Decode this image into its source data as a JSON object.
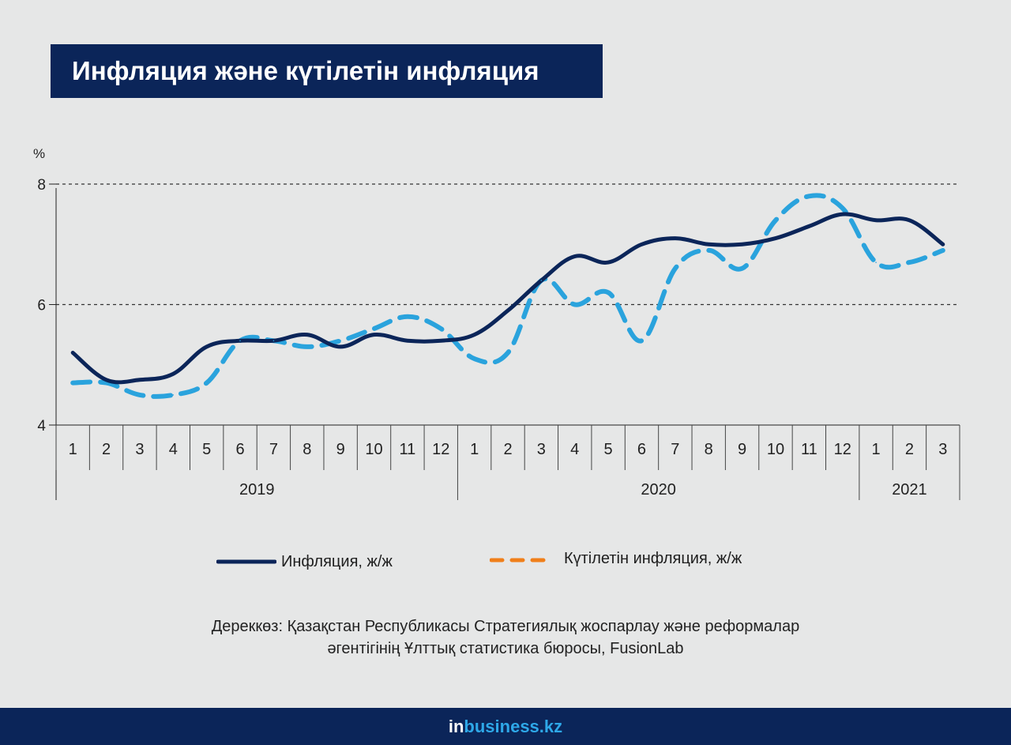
{
  "title": "Инфляция және күтілетін инфляция",
  "chart_data": {
    "type": "line",
    "ylabel": "%",
    "ylim": [
      4,
      8
    ],
    "yticks": [
      "4",
      "6",
      "8"
    ],
    "grid": "horizontal dashed at 6 and 8",
    "categories": [
      "1",
      "2",
      "3",
      "4",
      "5",
      "6",
      "7",
      "8",
      "9",
      "10",
      "11",
      "12",
      "1",
      "2",
      "3",
      "4",
      "5",
      "6",
      "7",
      "8",
      "9",
      "10",
      "11",
      "12",
      "1",
      "2",
      "3"
    ],
    "years": [
      {
        "label": "2019",
        "start": 0,
        "count": 12
      },
      {
        "label": "2020",
        "start": 12,
        "count": 12
      },
      {
        "label": "2021",
        "start": 24,
        "count": 3
      }
    ],
    "series": [
      {
        "name": "Инфляция, ж/ж",
        "color": "#0b2559",
        "style": "solid",
        "values": [
          5.2,
          4.75,
          4.75,
          4.85,
          5.3,
          5.4,
          5.4,
          5.5,
          5.3,
          5.5,
          5.4,
          5.4,
          5.5,
          5.9,
          6.4,
          6.8,
          6.7,
          7.0,
          7.1,
          7.0,
          7.0,
          7.1,
          7.3,
          7.5,
          7.4,
          7.4,
          7.0
        ]
      },
      {
        "name": "Күтілетін инфляция, ж/ж",
        "color": "#2aa3dd",
        "legend_color": "#f07f1a",
        "style": "dashed",
        "values": [
          4.7,
          4.7,
          4.5,
          4.5,
          4.7,
          5.4,
          5.4,
          5.3,
          5.4,
          5.6,
          5.8,
          5.6,
          5.1,
          5.2,
          6.4,
          6.0,
          6.2,
          5.4,
          6.6,
          6.9,
          6.6,
          7.4,
          7.8,
          7.6,
          6.7,
          6.7,
          6.9
        ]
      }
    ]
  },
  "source": {
    "line1": "Дереккөз: Қазақстан Республикасы Стратегиялық жоспарлау және реформалар",
    "line2": "әгентігінің Ұлттық статистика бюросы, FusionLab"
  },
  "footer": {
    "brand_in": "in",
    "brand_rest": "business.kz"
  }
}
